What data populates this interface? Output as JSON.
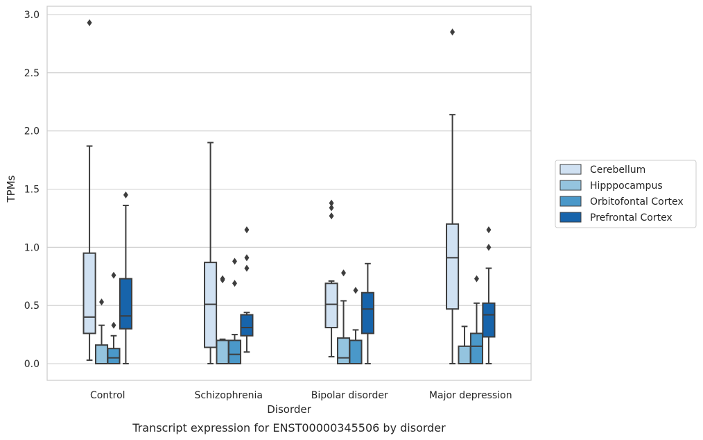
{
  "caption": "Transcript expression for ENST00000345506 by disorder",
  "chart_data": {
    "type": "box",
    "title": "",
    "xlabel": "Disorder",
    "ylabel": "TPMs",
    "ylim": [
      -0.14,
      3.08
    ],
    "yticks": [
      "0.0",
      "0.5",
      "1.0",
      "1.5",
      "2.0",
      "2.5",
      "3.0"
    ],
    "ytick_values": [
      0,
      0.5,
      1.0,
      1.5,
      2.0,
      2.5,
      3.0
    ],
    "grid": "horizontal",
    "legend_position": "right",
    "categories": [
      "Control",
      "Schizophrenia",
      "Bipolar disorder",
      "Major depression"
    ],
    "series": [
      {
        "name": "Cerebellum",
        "color": "#d0e1f2",
        "boxes": [
          {
            "whislo": 0.03,
            "q1": 0.26,
            "med": 0.4,
            "q3": 0.95,
            "whishi": 1.87,
            "fliers": [
              2.93
            ]
          },
          {
            "whislo": 0.0,
            "q1": 0.14,
            "med": 0.51,
            "q3": 0.87,
            "whishi": 1.9,
            "fliers": []
          },
          {
            "whislo": 0.06,
            "q1": 0.31,
            "med": 0.51,
            "q3": 0.69,
            "whishi": 0.71,
            "fliers": [
              1.27,
              1.34,
              1.38
            ]
          },
          {
            "whislo": 0.0,
            "q1": 0.47,
            "med": 0.91,
            "q3": 1.2,
            "whishi": 2.14,
            "fliers": [
              2.85
            ]
          }
        ]
      },
      {
        "name": "Hipppocampus",
        "color": "#94c4df",
        "boxes": [
          {
            "whislo": 0.0,
            "q1": 0.0,
            "med": 0.0,
            "q3": 0.16,
            "whishi": 0.33,
            "fliers": [
              0.53
            ]
          },
          {
            "whislo": 0.0,
            "q1": 0.0,
            "med": 0.0,
            "q3": 0.2,
            "whishi": 0.21,
            "fliers": [
              0.72,
              0.73
            ]
          },
          {
            "whislo": 0.0,
            "q1": 0.0,
            "med": 0.05,
            "q3": 0.22,
            "whishi": 0.54,
            "fliers": [
              0.78
            ]
          },
          {
            "whislo": 0.0,
            "q1": 0.0,
            "med": 0.0,
            "q3": 0.15,
            "whishi": 0.32,
            "fliers": []
          }
        ]
      },
      {
        "name": "Orbitofontal Cortex",
        "color": "#4a98c9",
        "boxes": [
          {
            "whislo": 0.0,
            "q1": 0.0,
            "med": 0.05,
            "q3": 0.13,
            "whishi": 0.24,
            "fliers": [
              0.33,
              0.76
            ]
          },
          {
            "whislo": 0.0,
            "q1": 0.0,
            "med": 0.08,
            "q3": 0.2,
            "whishi": 0.25,
            "fliers": [
              0.69,
              0.88
            ]
          },
          {
            "whislo": 0.0,
            "q1": 0.0,
            "med": 0.0,
            "q3": 0.2,
            "whishi": 0.29,
            "fliers": [
              0.63
            ]
          },
          {
            "whislo": 0.0,
            "q1": 0.0,
            "med": 0.15,
            "q3": 0.26,
            "whishi": 0.52,
            "fliers": [
              0.73
            ]
          }
        ]
      },
      {
        "name": "Prefrontal Cortex",
        "color": "#1764ab",
        "boxes": [
          {
            "whislo": 0.0,
            "q1": 0.3,
            "med": 0.41,
            "q3": 0.73,
            "whishi": 1.36,
            "fliers": [
              1.45
            ]
          },
          {
            "whislo": 0.1,
            "q1": 0.24,
            "med": 0.31,
            "q3": 0.42,
            "whishi": 0.44,
            "fliers": [
              0.82,
              0.91,
              1.15
            ]
          },
          {
            "whislo": 0.0,
            "q1": 0.26,
            "med": 0.47,
            "q3": 0.61,
            "whishi": 0.86,
            "fliers": []
          },
          {
            "whislo": 0.0,
            "q1": 0.23,
            "med": 0.42,
            "q3": 0.52,
            "whishi": 0.82,
            "fliers": [
              1.0,
              1.15
            ]
          }
        ]
      }
    ]
  }
}
